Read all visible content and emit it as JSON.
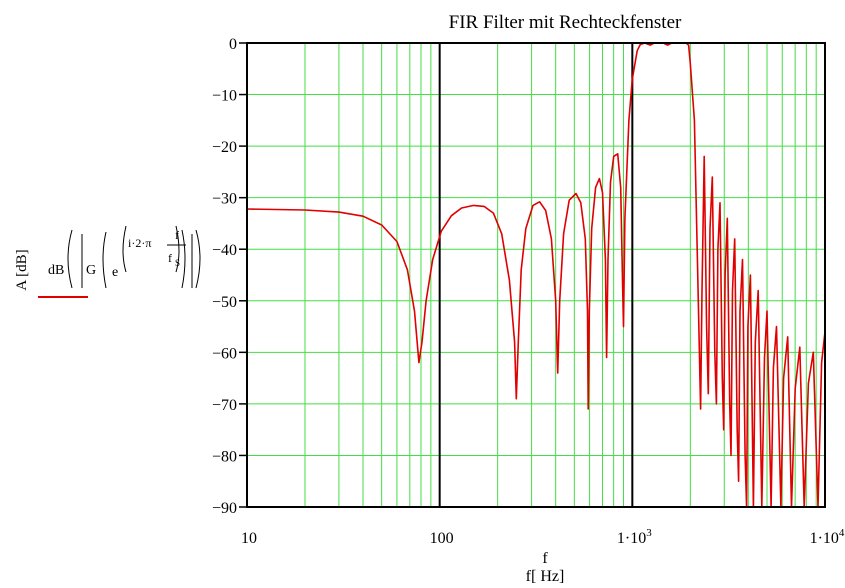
{
  "chart_data": {
    "type": "line",
    "title": "FIR Filter mit Rechteckfenster",
    "xlabel_var": "f",
    "xlabel": "f[ Hz]",
    "ylabel": "A [dB]",
    "legend_expr": {
      "dB": "dB",
      "G": "G",
      "e": "e",
      "exponent": "i·2·π",
      "frac_num": "f",
      "frac_den_base": "f",
      "frac_den_sub": "S"
    },
    "x_scale": "log",
    "xlim": [
      10,
      10000
    ],
    "ylim": [
      -90,
      0
    ],
    "x_ticks": [
      {
        "value": 10,
        "label": "10"
      },
      {
        "value": 100,
        "label": "100"
      },
      {
        "value": 1000,
        "label": "1·10",
        "exp": "3"
      },
      {
        "value": 10000,
        "label": "1·10",
        "exp": "4"
      }
    ],
    "y_ticks": [
      {
        "value": 0,
        "label": "0"
      },
      {
        "value": -10,
        "label": "−10"
      },
      {
        "value": -20,
        "label": "−20"
      },
      {
        "value": -30,
        "label": "−30"
      },
      {
        "value": -40,
        "label": "−40"
      },
      {
        "value": -50,
        "label": "−50"
      },
      {
        "value": -60,
        "label": "−60"
      },
      {
        "value": -70,
        "label": "−70"
      },
      {
        "value": -80,
        "label": "−80"
      },
      {
        "value": -90,
        "label": "−90"
      }
    ],
    "grid": true,
    "colors": {
      "grid": "#44dd44",
      "curve": "#e00000",
      "decade_lines": "#000000"
    },
    "series": [
      {
        "name": "",
        "points": [
          [
            10,
            -32.2
          ],
          [
            20,
            -32.4
          ],
          [
            30,
            -32.8
          ],
          [
            40,
            -33.6
          ],
          [
            50,
            -35.3
          ],
          [
            60,
            -38.5
          ],
          [
            68,
            -44
          ],
          [
            74,
            -52
          ],
          [
            78,
            -62
          ],
          [
            81,
            -58
          ],
          [
            85,
            -50
          ],
          [
            92,
            -42
          ],
          [
            102,
            -36.5
          ],
          [
            115,
            -33.5
          ],
          [
            130,
            -32
          ],
          [
            150,
            -31.5
          ],
          [
            170,
            -31.7
          ],
          [
            190,
            -33
          ],
          [
            210,
            -37
          ],
          [
            230,
            -46
          ],
          [
            245,
            -58
          ],
          [
            250,
            -69
          ],
          [
            256,
            -58
          ],
          [
            265,
            -44
          ],
          [
            280,
            -36
          ],
          [
            305,
            -31.5
          ],
          [
            330,
            -30.8
          ],
          [
            355,
            -32.5
          ],
          [
            380,
            -38
          ],
          [
            400,
            -50
          ],
          [
            410,
            -64
          ],
          [
            420,
            -50
          ],
          [
            440,
            -37
          ],
          [
            470,
            -30.5
          ],
          [
            510,
            -29.2
          ],
          [
            540,
            -31
          ],
          [
            570,
            -38
          ],
          [
            585,
            -52
          ],
          [
            590,
            -71
          ],
          [
            598,
            -52
          ],
          [
            615,
            -36
          ],
          [
            645,
            -28
          ],
          [
            675,
            -26.3
          ],
          [
            700,
            -29
          ],
          [
            725,
            -42
          ],
          [
            735,
            -61
          ],
          [
            748,
            -42
          ],
          [
            770,
            -27
          ],
          [
            800,
            -22
          ],
          [
            840,
            -21.5
          ],
          [
            870,
            -28
          ],
          [
            890,
            -47
          ],
          [
            900,
            -55
          ],
          [
            915,
            -34
          ],
          [
            960,
            -15
          ],
          [
            1000,
            -7
          ],
          [
            1060,
            -1.5
          ],
          [
            1100,
            -0.3
          ],
          [
            1160,
            0
          ],
          [
            1240,
            -0.4
          ],
          [
            1300,
            0
          ],
          [
            1450,
            0
          ],
          [
            1520,
            -0.4
          ],
          [
            1600,
            0
          ],
          [
            1900,
            0
          ],
          [
            1960,
            -0.4
          ],
          [
            2000,
            -4
          ],
          [
            2100,
            -15
          ],
          [
            2200,
            -50
          ],
          [
            2260,
            -71
          ],
          [
            2300,
            -48
          ],
          [
            2360,
            -22
          ],
          [
            2430,
            -55
          ],
          [
            2480,
            -68
          ],
          [
            2530,
            -36
          ],
          [
            2600,
            -26
          ],
          [
            2680,
            -60
          ],
          [
            2730,
            -70
          ],
          [
            2780,
            -40
          ],
          [
            2850,
            -31
          ],
          [
            2930,
            -65
          ],
          [
            2980,
            -75
          ],
          [
            3030,
            -45
          ],
          [
            3110,
            -34
          ],
          [
            3200,
            -70
          ],
          [
            3250,
            -80
          ],
          [
            3310,
            -48
          ],
          [
            3400,
            -38
          ],
          [
            3500,
            -75
          ],
          [
            3560,
            -85
          ],
          [
            3620,
            -52
          ],
          [
            3730,
            -42
          ],
          [
            3850,
            -80
          ],
          [
            3920,
            -90
          ],
          [
            3980,
            -55
          ],
          [
            4100,
            -45
          ],
          [
            4250,
            -90
          ],
          [
            4350,
            -58
          ],
          [
            4500,
            -48
          ],
          [
            4700,
            -90
          ],
          [
            4850,
            -61
          ],
          [
            5000,
            -52
          ],
          [
            5250,
            -90
          ],
          [
            5400,
            -63
          ],
          [
            5600,
            -55
          ],
          [
            5900,
            -90
          ],
          [
            6100,
            -65
          ],
          [
            6400,
            -57
          ],
          [
            6700,
            -90
          ],
          [
            7000,
            -67
          ],
          [
            7400,
            -59
          ],
          [
            7800,
            -90
          ],
          [
            8200,
            -66
          ],
          [
            8700,
            -60
          ],
          [
            9200,
            -90
          ],
          [
            9600,
            -62
          ],
          [
            10000,
            -56
          ]
        ]
      }
    ]
  }
}
